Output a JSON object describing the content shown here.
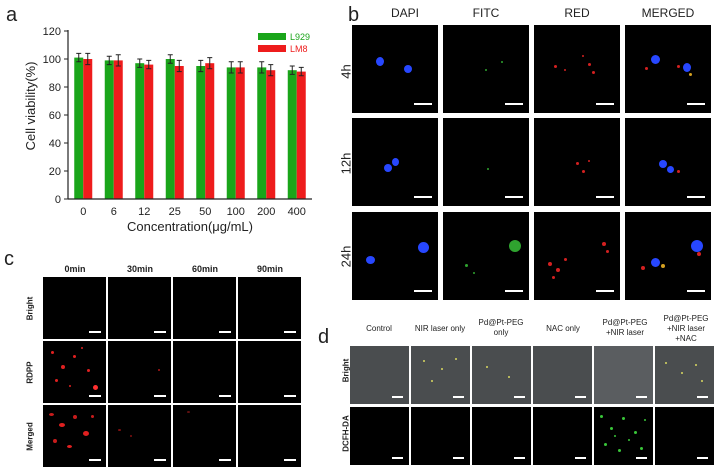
{
  "panel_letters": {
    "a": "a",
    "b": "b",
    "c": "c",
    "d": "d"
  },
  "chart_data": {
    "type": "bar",
    "title": "",
    "xlabel": "Concentration(μg/mL)",
    "ylabel": "Cell viability(%)",
    "ylim": [
      0,
      120
    ],
    "yticks": [
      "0",
      "20",
      "40",
      "60",
      "80",
      "100",
      "120"
    ],
    "categories": [
      "0",
      "6",
      "12",
      "25",
      "50",
      "100",
      "200",
      "400"
    ],
    "grid": false,
    "legend_position": "top-right",
    "series": [
      {
        "name": "L929",
        "color": "#1aa51a",
        "values": [
          101,
          99,
          97,
          100,
          95,
          94,
          94,
          92
        ],
        "errors": [
          3,
          3,
          3,
          3,
          4,
          4,
          4,
          3
        ]
      },
      {
        "name": "LM8",
        "color": "#ee1c1c",
        "values": [
          100,
          99,
          96,
          95,
          97,
          94,
          92,
          91
        ],
        "errors": [
          4,
          4,
          3,
          4,
          4,
          4,
          4,
          3
        ]
      }
    ]
  },
  "panel_b": {
    "columns": [
      "DAPI",
      "FITC",
      "RED",
      "MERGED"
    ],
    "rows": [
      "4h",
      "12h",
      "24h"
    ]
  },
  "panel_c": {
    "columns": [
      "0min",
      "30min",
      "60min",
      "90min"
    ],
    "rows": [
      "Bright",
      "RDPP",
      "Merged"
    ]
  },
  "panel_d": {
    "columns": [
      "Control",
      "NIR laser only",
      "Pd@Pt-PEG only",
      "NAC only",
      "Pd@Pt-PEG +NIR laser",
      "Pd@Pt-PEG +NIR laser +NAC"
    ],
    "rows": [
      "Bright",
      "DCFH-DA"
    ]
  }
}
